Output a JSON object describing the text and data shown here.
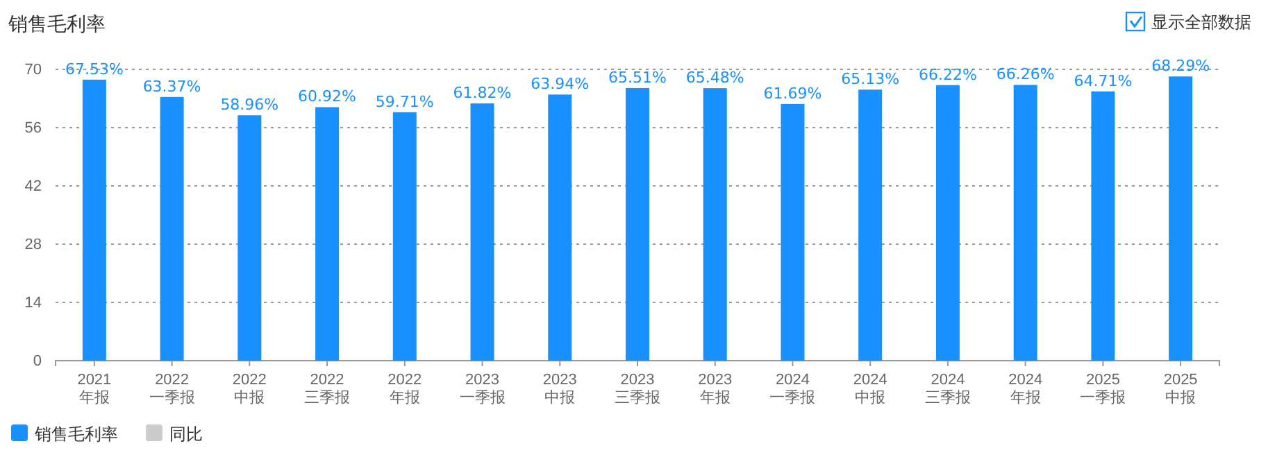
{
  "chart_data": {
    "type": "bar",
    "title": "销售毛利率",
    "categories": [
      "2021\n年报",
      "2022\n一季报",
      "2022\n中报",
      "2022\n三季报",
      "2022\n年报",
      "2023\n一季报",
      "2023\n中报",
      "2023\n三季报",
      "2023\n年报",
      "2024\n一季报",
      "2024\n中报",
      "2024\n三季报",
      "2024\n年报",
      "2025\n一季报",
      "2025\n中报"
    ],
    "series": [
      {
        "name": "销售毛利率",
        "color": "#1890ff",
        "values": [
          67.53,
          63.37,
          58.96,
          60.92,
          59.71,
          61.82,
          63.94,
          65.51,
          65.48,
          61.69,
          65.13,
          66.22,
          66.26,
          64.71,
          68.29
        ],
        "value_labels": [
          "67.53%",
          "63.37%",
          "58.96%",
          "60.92%",
          "59.71%",
          "61.82%",
          "63.94%",
          "65.51%",
          "65.48%",
          "61.69%",
          "65.13%",
          "66.22%",
          "66.26%",
          "64.71%",
          "68.29%"
        ]
      },
      {
        "name": "同比",
        "color": "#cccccc",
        "values": [
          null,
          null,
          null,
          null,
          null,
          null,
          null,
          null,
          null,
          null,
          null,
          null,
          null,
          null,
          null
        ]
      }
    ],
    "ylim": [
      0,
      70
    ],
    "yticks": [
      0,
      14,
      28,
      42,
      56,
      70
    ],
    "grid": "y",
    "legend": "bottom left",
    "annotations": [
      "显示全部数据"
    ]
  }
}
